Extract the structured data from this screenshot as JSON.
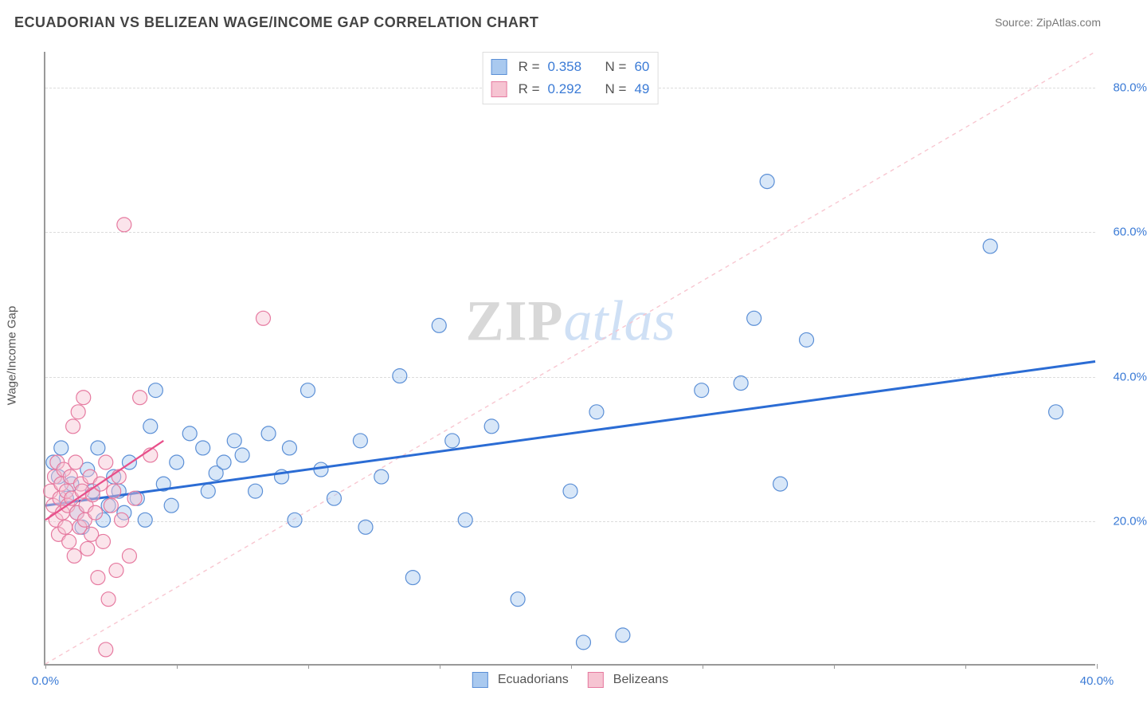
{
  "title": "ECUADORIAN VS BELIZEAN WAGE/INCOME GAP CORRELATION CHART",
  "source": "Source: ZipAtlas.com",
  "y_axis_title": "Wage/Income Gap",
  "watermark": {
    "part1": "ZIP",
    "part2": "atlas"
  },
  "chart": {
    "type": "scatter",
    "background_color": "#ffffff",
    "grid_color": "#dcdcdc",
    "axis_color": "#999999",
    "label_color": "#3b7bd6",
    "title_color": "#444444",
    "x": {
      "min": 0.0,
      "max": 40.0,
      "ticks": [
        0,
        5,
        10,
        15,
        20,
        25,
        30,
        35,
        40
      ],
      "tick_labels": [
        "0.0%",
        "",
        "",
        "",
        "",
        "",
        "",
        "",
        "40.0%"
      ]
    },
    "y": {
      "min": 0.0,
      "max": 85.0,
      "ticks": [
        20,
        40,
        60,
        80
      ],
      "tick_labels": [
        "20.0%",
        "40.0%",
        "60.0%",
        "80.0%"
      ]
    },
    "marker_radius": 9,
    "marker_fill_opacity": 0.45,
    "marker_stroke_width": 1.2,
    "identity_line": {
      "color": "#f8c6d0",
      "dash": "5,5",
      "width": 1.4,
      "x1": 0,
      "y1": 0,
      "x2": 40,
      "y2": 85
    },
    "series": [
      {
        "name": "Ecuadorians",
        "color_fill": "#a9c9ef",
        "color_stroke": "#5b8fd6",
        "trend": {
          "color": "#2b6cd4",
          "width": 3,
          "x1": 0,
          "y1": 22,
          "x2": 40,
          "y2": 42
        },
        "stats": {
          "R": "0.358",
          "N": "60"
        },
        "points": [
          [
            0.3,
            28
          ],
          [
            0.5,
            26
          ],
          [
            0.6,
            30
          ],
          [
            0.8,
            23
          ],
          [
            1.0,
            25
          ],
          [
            1.2,
            21
          ],
          [
            1.4,
            19
          ],
          [
            1.6,
            27
          ],
          [
            1.8,
            24
          ],
          [
            2.0,
            30
          ],
          [
            2.2,
            20
          ],
          [
            2.4,
            22
          ],
          [
            2.6,
            26
          ],
          [
            2.8,
            24
          ],
          [
            3.0,
            21
          ],
          [
            3.2,
            28
          ],
          [
            3.5,
            23
          ],
          [
            3.8,
            20
          ],
          [
            4.0,
            33
          ],
          [
            4.2,
            38
          ],
          [
            4.5,
            25
          ],
          [
            4.8,
            22
          ],
          [
            5.0,
            28
          ],
          [
            5.5,
            32
          ],
          [
            6.0,
            30
          ],
          [
            6.2,
            24
          ],
          [
            6.5,
            26.5
          ],
          [
            6.8,
            28
          ],
          [
            7.2,
            31
          ],
          [
            7.5,
            29
          ],
          [
            8.0,
            24
          ],
          [
            8.5,
            32
          ],
          [
            9.0,
            26
          ],
          [
            9.3,
            30
          ],
          [
            9.5,
            20
          ],
          [
            10.0,
            38
          ],
          [
            10.5,
            27
          ],
          [
            11.0,
            23
          ],
          [
            12.0,
            31
          ],
          [
            12.2,
            19
          ],
          [
            12.8,
            26
          ],
          [
            13.5,
            40
          ],
          [
            14.0,
            12
          ],
          [
            15.0,
            47
          ],
          [
            15.5,
            31
          ],
          [
            16.0,
            20
          ],
          [
            17.0,
            33
          ],
          [
            18.0,
            9
          ],
          [
            20.0,
            24
          ],
          [
            20.5,
            3
          ],
          [
            21.0,
            35
          ],
          [
            22.0,
            4
          ],
          [
            25.0,
            38
          ],
          [
            26.5,
            39
          ],
          [
            27.0,
            48
          ],
          [
            27.5,
            67
          ],
          [
            28.0,
            25
          ],
          [
            29.0,
            45
          ],
          [
            36.0,
            58
          ],
          [
            38.5,
            35
          ]
        ]
      },
      {
        "name": "Belizeans",
        "color_fill": "#f6c4d2",
        "color_stroke": "#e67aa0",
        "trend": {
          "color": "#e84f8a",
          "width": 2.2,
          "x1": 0,
          "y1": 20,
          "x2": 4.5,
          "y2": 31
        },
        "stats": {
          "R": "0.292",
          "N": "49"
        },
        "points": [
          [
            0.2,
            24
          ],
          [
            0.3,
            22
          ],
          [
            0.35,
            26
          ],
          [
            0.4,
            20
          ],
          [
            0.45,
            28
          ],
          [
            0.5,
            18
          ],
          [
            0.55,
            23
          ],
          [
            0.6,
            25
          ],
          [
            0.65,
            21
          ],
          [
            0.7,
            27
          ],
          [
            0.75,
            19
          ],
          [
            0.8,
            24
          ],
          [
            0.85,
            22
          ],
          [
            0.9,
            17
          ],
          [
            0.95,
            26
          ],
          [
            1.0,
            23
          ],
          [
            1.05,
            33
          ],
          [
            1.1,
            15
          ],
          [
            1.15,
            28
          ],
          [
            1.2,
            21
          ],
          [
            1.25,
            35
          ],
          [
            1.3,
            19
          ],
          [
            1.35,
            25
          ],
          [
            1.4,
            24
          ],
          [
            1.45,
            37
          ],
          [
            1.5,
            20
          ],
          [
            1.55,
            22
          ],
          [
            1.6,
            16
          ],
          [
            1.7,
            26
          ],
          [
            1.75,
            18
          ],
          [
            1.8,
            23.5
          ],
          [
            1.9,
            21
          ],
          [
            2.0,
            12
          ],
          [
            2.1,
            25
          ],
          [
            2.2,
            17
          ],
          [
            2.3,
            28
          ],
          [
            2.4,
            9
          ],
          [
            2.5,
            22
          ],
          [
            2.6,
            24
          ],
          [
            2.7,
            13
          ],
          [
            2.8,
            26
          ],
          [
            2.9,
            20
          ],
          [
            3.0,
            61
          ],
          [
            3.2,
            15
          ],
          [
            3.4,
            23
          ],
          [
            3.6,
            37
          ],
          [
            2.3,
            2
          ],
          [
            4.0,
            29
          ],
          [
            8.3,
            48
          ]
        ]
      }
    ]
  },
  "stat_legend_labels": {
    "R": "R =",
    "N": "N ="
  },
  "series_legend_labels": [
    "Ecuadorians",
    "Belizeans"
  ]
}
